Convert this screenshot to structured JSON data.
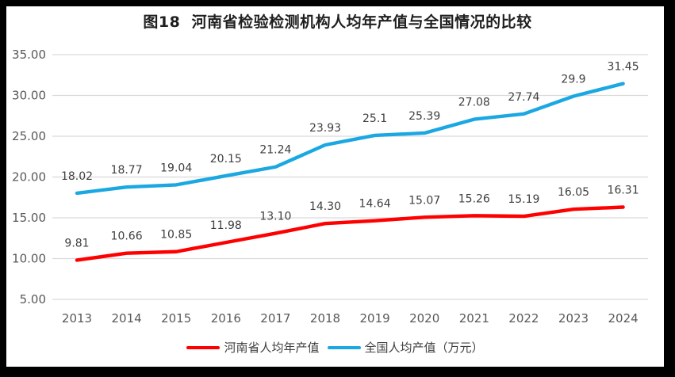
{
  "figure": {
    "title": "图18  河南省检验检测机构人均年产值与全国情况的比较"
  },
  "colors": {
    "frame": "#000000",
    "paper": "#ffffff",
    "gridline": "#d9d9d9",
    "tick_text": "#595959",
    "data_label_text": "#3f3f3f",
    "title_text": "#1f1f1f",
    "henan_red": "#fe0000",
    "national_blue": "#1ba8e2"
  },
  "chart_data": {
    "type": "line",
    "title": "图18  河南省检验检测机构人均年产值与全国情况的比较",
    "xlabel": "",
    "ylabel": "",
    "categories": [
      "2013",
      "2014",
      "2015",
      "2016",
      "2017",
      "2018",
      "2019",
      "2020",
      "2021",
      "2022",
      "2023",
      "2024"
    ],
    "series": [
      {
        "name": "河南省人均年产值",
        "color": "#fe0000",
        "values": [
          9.81,
          10.66,
          10.85,
          11.98,
          13.1,
          14.3,
          14.64,
          15.07,
          15.26,
          15.19,
          16.05,
          16.31
        ],
        "labels": [
          "9.81",
          "10.66",
          "10.85",
          "11.98",
          "13.10",
          "14.30",
          "14.64",
          "15.07",
          "15.26",
          "15.19",
          "16.05",
          "16.31"
        ]
      },
      {
        "name": "全国人均产值（万元）",
        "color": "#1ba8e2",
        "values": [
          18.02,
          18.77,
          19.04,
          20.15,
          21.24,
          23.93,
          25.1,
          25.39,
          27.08,
          27.74,
          29.9,
          31.45
        ],
        "labels": [
          "18.02",
          "18.77",
          "19.04",
          "20.15",
          "21.24",
          "23.93",
          "25.1",
          "25.39",
          "27.08",
          "27.74",
          "29.9",
          "31.45"
        ]
      }
    ],
    "ylim": [
      5,
      35
    ],
    "yticks": {
      "values": [
        5,
        10,
        15,
        20,
        25,
        30,
        35
      ],
      "labels": [
        "5.00",
        "10.00",
        "15.00",
        "20.00",
        "25.00",
        "30.00",
        "35.00"
      ]
    },
    "grid": "horizontal",
    "legend_position": "bottom"
  }
}
